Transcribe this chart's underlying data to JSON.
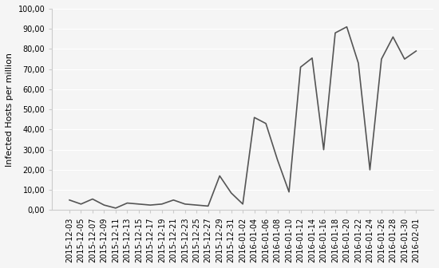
{
  "dates": [
    "2015-12-03",
    "2015-12-05",
    "2015-12-07",
    "2015-12-09",
    "2015-12-11",
    "2015-12-13",
    "2015-12-15",
    "2015-12-17",
    "2015-12-19",
    "2015-12-21",
    "2015-12-23",
    "2015-12-25",
    "2015-12-27",
    "2015-12-29",
    "2015-12-31",
    "2016-01-02",
    "2016-01-04",
    "2016-01-06",
    "2016-01-08",
    "2016-01-10",
    "2016-01-12",
    "2016-01-14",
    "2016-01-16",
    "2016-01-18",
    "2016-01-20",
    "2016-01-22",
    "2016-01-24",
    "2016-01-26",
    "2016-01-28",
    "2016-01-30",
    "2016-02-01"
  ],
  "values": [
    5.0,
    3.0,
    5.5,
    2.5,
    1.0,
    3.5,
    3.0,
    2.5,
    3.0,
    5.0,
    3.0,
    2.5,
    2.0,
    17.0,
    8.5,
    3.0,
    46.0,
    43.0,
    25.0,
    9.0,
    71.0,
    75.5,
    30.0,
    88.0,
    91.0,
    73.0,
    20.0,
    75.0,
    86.0,
    75.0,
    79.0
  ],
  "xlabel": "",
  "ylabel": "Infected Hosts per million",
  "ylim": [
    0,
    100
  ],
  "yticks": [
    0,
    10,
    20,
    30,
    40,
    50,
    60,
    70,
    80,
    90,
    100
  ],
  "ytick_labels": [
    "0,00",
    "10,00",
    "20,00",
    "30,00",
    "40,00",
    "50,00",
    "60,00",
    "70,00",
    "80,00",
    "90,00",
    "100,00"
  ],
  "line_color": "#555555",
  "line_width": 1.2,
  "background_color": "#f5f5f5",
  "grid_color": "#ffffff",
  "tick_label_fontsize": 7,
  "ylabel_fontsize": 8
}
